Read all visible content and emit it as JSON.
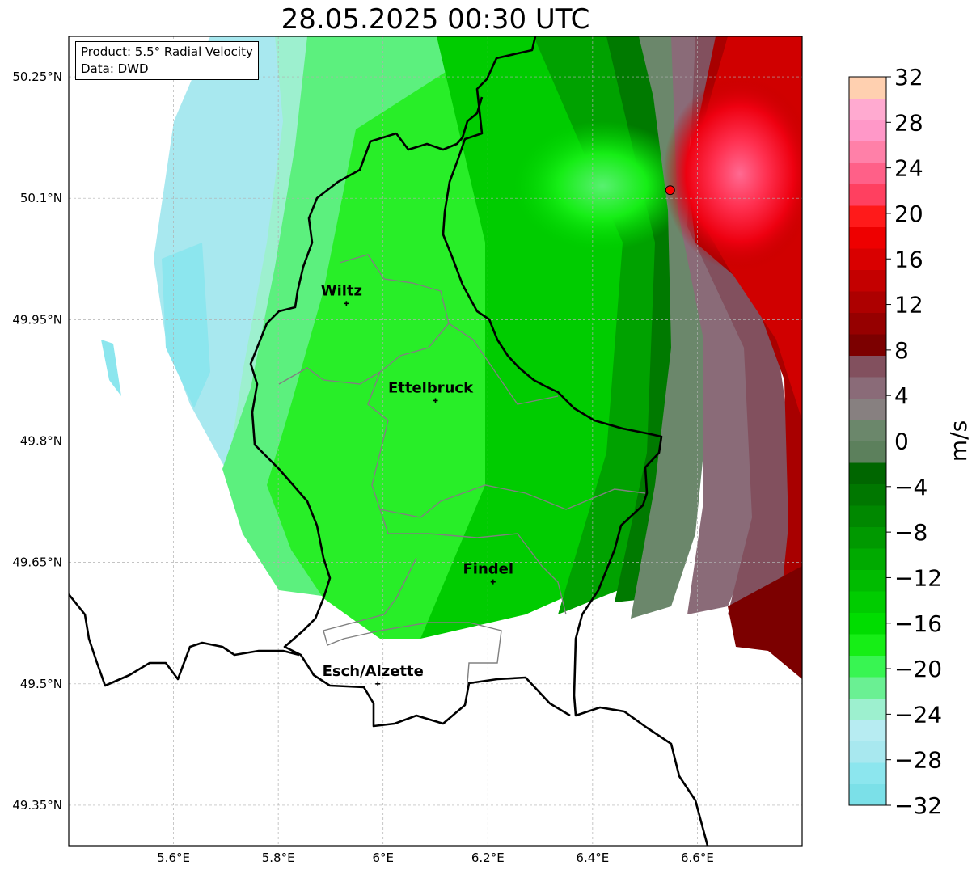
{
  "title": "28.05.2025 00:30 UTC",
  "info": {
    "product": "Product: 5.5° Radial Velocity",
    "data": "Data: DWD"
  },
  "map": {
    "lon_range": [
      5.4,
      6.8
    ],
    "lat_range": [
      49.3,
      50.3
    ],
    "lon_ticks": [
      {
        "value": 5.6,
        "label": "5.6°E"
      },
      {
        "value": 5.8,
        "label": "5.8°E"
      },
      {
        "value": 6.0,
        "label": "6°E"
      },
      {
        "value": 6.2,
        "label": "6.2°E"
      },
      {
        "value": 6.4,
        "label": "6.4°E"
      },
      {
        "value": 6.6,
        "label": "6.6°E"
      }
    ],
    "lat_ticks": [
      {
        "value": 50.25,
        "label": "50.25°N"
      },
      {
        "value": 50.1,
        "label": "50.1°N"
      },
      {
        "value": 49.95,
        "label": "49.95°N"
      },
      {
        "value": 49.8,
        "label": "49.8°N"
      },
      {
        "value": 49.65,
        "label": "49.65°N"
      },
      {
        "value": 49.5,
        "label": "49.5°N"
      },
      {
        "value": 49.35,
        "label": "49.35°N"
      }
    ],
    "cities": [
      {
        "name": "Wiltz",
        "lon": 5.93,
        "lat": 49.97
      },
      {
        "name": "Ettelbruck",
        "lon": 6.1,
        "lat": 49.85
      },
      {
        "name": "Findel",
        "lon": 6.21,
        "lat": 49.626
      },
      {
        "name": "Esch/Alzette",
        "lon": 5.99,
        "lat": 49.5
      }
    ],
    "radar_site": {
      "lon": 6.548,
      "lat": 50.11,
      "color": "#ff0000"
    }
  },
  "colorbar": {
    "unit": "m/s",
    "min": -32,
    "max": 32,
    "ticks": [
      -32,
      -28,
      -24,
      -20,
      -16,
      -12,
      -8,
      -4,
      0,
      4,
      8,
      12,
      16,
      20,
      24,
      28,
      32
    ],
    "colors": [
      "#7be0e8",
      "#8ce6ee",
      "#a8e8ef",
      "#b7ecf2",
      "#9df0cf",
      "#6af093",
      "#38f552",
      "#16ee16",
      "#00dd00",
      "#00cc00",
      "#00bb00",
      "#00aa00",
      "#009900",
      "#008800",
      "#007700",
      "#006600",
      "#5c805c",
      "#6b876b",
      "#878080",
      "#8a6b78",
      "#82505e",
      "#7c0000",
      "#960000",
      "#ad0000",
      "#c40000",
      "#d90000",
      "#ee0000",
      "#ff1a1a",
      "#ff4060",
      "#ff6088",
      "#ff80a8",
      "#ff98c8",
      "#ffaad0",
      "#ffd0b0"
    ]
  }
}
